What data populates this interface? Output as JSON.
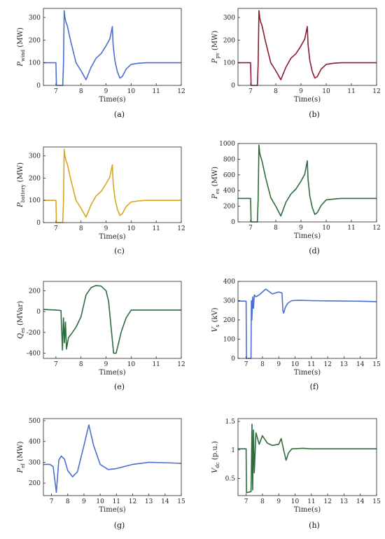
{
  "chart_data": [
    {
      "type": "line",
      "panel_label": "(a)",
      "xlabel": "Time(s)",
      "ylabel": {
        "base": "P",
        "sub": "wind",
        "unit": "(MW)"
      },
      "xlim": [
        6.5,
        12
      ],
      "ylim": [
        0,
        340
      ],
      "xticks": [
        7,
        8,
        9,
        10,
        11,
        12
      ],
      "yticks": [
        0,
        100,
        200,
        300
      ],
      "series": [
        {
          "color": "#4a6fd0",
          "x": [
            6.5,
            7.0,
            7.02,
            7.27,
            7.3,
            7.33,
            7.36,
            7.4,
            7.45,
            7.6,
            7.8,
            8.0,
            8.2,
            8.4,
            8.6,
            8.8,
            9.0,
            9.15,
            9.25,
            9.28,
            9.35,
            9.45,
            9.55,
            9.65,
            9.8,
            10.0,
            10.3,
            10.6,
            11.0,
            12.0
          ],
          "y": [
            100,
            100,
            0,
            0,
            95,
            330,
            300,
            280,
            265,
            190,
            100,
            65,
            25,
            80,
            120,
            140,
            175,
            205,
            260,
            180,
            110,
            60,
            32,
            40,
            72,
            93,
            98,
            100,
            100,
            100
          ]
        }
      ]
    },
    {
      "type": "line",
      "panel_label": "(b)",
      "xlabel": "Time(s)",
      "ylabel": {
        "base": "P",
        "sub": "pv",
        "unit": "(MW)"
      },
      "xlim": [
        6.5,
        12
      ],
      "ylim": [
        0,
        340
      ],
      "xticks": [
        7,
        8,
        9,
        10,
        11,
        12
      ],
      "yticks": [
        0,
        100,
        200,
        300
      ],
      "series": [
        {
          "color": "#8b1a2e",
          "x": [
            6.5,
            7.0,
            7.02,
            7.27,
            7.3,
            7.33,
            7.36,
            7.4,
            7.45,
            7.6,
            7.8,
            8.0,
            8.2,
            8.4,
            8.6,
            8.8,
            9.0,
            9.15,
            9.25,
            9.28,
            9.35,
            9.45,
            9.55,
            9.65,
            9.8,
            10.0,
            10.3,
            10.6,
            11.0,
            12.0
          ],
          "y": [
            100,
            100,
            0,
            0,
            95,
            330,
            300,
            280,
            265,
            190,
            100,
            65,
            25,
            80,
            120,
            140,
            175,
            205,
            260,
            180,
            110,
            60,
            32,
            40,
            72,
            93,
            98,
            100,
            100,
            100
          ]
        }
      ]
    },
    {
      "type": "line",
      "panel_label": "(c)",
      "xlabel": "Time(s)",
      "ylabel": {
        "base": "P",
        "sub": "battery",
        "unit": "(MW)"
      },
      "xlim": [
        6.5,
        12
      ],
      "ylim": [
        0,
        340
      ],
      "xticks": [
        7,
        8,
        9,
        10,
        11,
        12
      ],
      "yticks": [
        0,
        100,
        200,
        300
      ],
      "series": [
        {
          "color": "#d9a521",
          "x": [
            6.5,
            7.0,
            7.02,
            7.27,
            7.3,
            7.33,
            7.36,
            7.4,
            7.45,
            7.6,
            7.8,
            8.0,
            8.2,
            8.4,
            8.6,
            8.8,
            9.0,
            9.15,
            9.25,
            9.28,
            9.35,
            9.45,
            9.55,
            9.65,
            9.8,
            10.0,
            10.3,
            10.6,
            11.0,
            12.0
          ],
          "y": [
            100,
            100,
            0,
            0,
            95,
            330,
            300,
            280,
            265,
            190,
            100,
            65,
            25,
            80,
            120,
            140,
            175,
            205,
            260,
            180,
            110,
            60,
            32,
            40,
            72,
            93,
            98,
            100,
            100,
            100
          ]
        }
      ]
    },
    {
      "type": "line",
      "panel_label": "(d)",
      "xlabel": "Time(s)",
      "ylabel": {
        "base": "P",
        "sub": "es",
        "unit": "(MW)"
      },
      "xlim": [
        6.5,
        12
      ],
      "ylim": [
        0,
        1000
      ],
      "xticks": [
        7,
        8,
        9,
        10,
        11,
        12
      ],
      "yticks": [
        0,
        200,
        400,
        600,
        800,
        1000
      ],
      "series": [
        {
          "color": "#2e6b3e",
          "x": [
            6.5,
            7.0,
            7.02,
            7.27,
            7.3,
            7.33,
            7.36,
            7.4,
            7.45,
            7.6,
            7.8,
            8.0,
            8.2,
            8.4,
            8.6,
            8.8,
            9.0,
            9.15,
            9.25,
            9.28,
            9.35,
            9.45,
            9.55,
            9.65,
            9.8,
            10.0,
            10.3,
            10.6,
            11.0,
            12.0
          ],
          "y": [
            300,
            300,
            0,
            0,
            290,
            980,
            880,
            830,
            780,
            560,
            310,
            200,
            75,
            250,
            355,
            420,
            520,
            610,
            780,
            540,
            330,
            180,
            95,
            120,
            210,
            280,
            292,
            300,
            300,
            300
          ]
        }
      ]
    },
    {
      "type": "line",
      "panel_label": "(e)",
      "xlabel": "Time(s)",
      "ylabel": {
        "base": "Q",
        "sub": "es",
        "unit": "(MVar)"
      },
      "xlim": [
        6.5,
        12
      ],
      "ylim": [
        -450,
        290
      ],
      "xticks": [
        7,
        8,
        9,
        10,
        11,
        12
      ],
      "yticks": [
        -400,
        -200,
        0,
        200
      ],
      "series": [
        {
          "color": "#2e6b3e",
          "x": [
            6.5,
            7.0,
            7.2,
            7.26,
            7.3,
            7.34,
            7.38,
            7.42,
            7.5,
            7.6,
            7.8,
            8.0,
            8.2,
            8.4,
            8.6,
            8.8,
            9.0,
            9.1,
            9.2,
            9.3,
            9.4,
            9.5,
            9.6,
            9.8,
            10.0,
            10.5,
            11.0,
            12.0
          ],
          "y": [
            20,
            15,
            10,
            -370,
            -60,
            -300,
            -100,
            -360,
            -250,
            -220,
            -150,
            -50,
            160,
            230,
            250,
            245,
            200,
            100,
            -150,
            -400,
            -400,
            -300,
            -200,
            -60,
            15,
            15,
            15,
            15
          ]
        }
      ]
    },
    {
      "type": "line",
      "panel_label": "(f)",
      "xlabel": "Time(s)",
      "ylabel": {
        "base": "V",
        "sub": "s",
        "unit": "(kV)"
      },
      "xlim": [
        6.5,
        15
      ],
      "ylim": [
        0,
        400
      ],
      "xticks": [
        7,
        8,
        9,
        10,
        11,
        12,
        13,
        14,
        15
      ],
      "yticks": [
        0,
        100,
        200,
        300,
        400
      ],
      "series": [
        {
          "color": "#4a6fd0",
          "x": [
            6.5,
            7.0,
            7.02,
            7.3,
            7.32,
            7.35,
            7.4,
            7.45,
            7.5,
            7.6,
            7.8,
            8.0,
            8.2,
            8.6,
            9.0,
            9.2,
            9.25,
            9.3,
            9.4,
            9.5,
            9.6,
            9.8,
            10.2,
            11.0,
            12.0,
            13.0,
            14.0,
            15.0
          ],
          "y": [
            298,
            297,
            0,
            0,
            300,
            200,
            320,
            260,
            330,
            320,
            330,
            345,
            360,
            335,
            345,
            340,
            250,
            235,
            265,
            280,
            290,
            300,
            302,
            300,
            299,
            298,
            297,
            295
          ]
        }
      ]
    },
    {
      "type": "line",
      "panel_label": "(g)",
      "xlabel": "Time(s)",
      "ylabel": {
        "base": "P",
        "sub": "ef",
        "unit": "(MW)"
      },
      "xlim": [
        6.5,
        15
      ],
      "ylim": [
        140,
        510
      ],
      "xticks": [
        7,
        8,
        9,
        10,
        11,
        12,
        13,
        14,
        15
      ],
      "yticks": [
        200,
        300,
        400,
        500
      ],
      "series": [
        {
          "color": "#4a6fd0",
          "x": [
            6.5,
            6.9,
            7.1,
            7.3,
            7.45,
            7.6,
            7.8,
            8.0,
            8.3,
            8.6,
            9.0,
            9.3,
            9.6,
            10.0,
            10.5,
            11.0,
            12.0,
            13.0,
            14.0,
            15.0
          ],
          "y": [
            290,
            290,
            280,
            155,
            310,
            330,
            315,
            260,
            230,
            255,
            380,
            480,
            380,
            290,
            265,
            270,
            290,
            300,
            298,
            295
          ]
        }
      ]
    },
    {
      "type": "line",
      "panel_label": "(h)",
      "xlabel": "Time(s)",
      "ylabel": {
        "base": "V",
        "sub": "dc",
        "unit": "(p.u.)"
      },
      "xlim": [
        6.5,
        15
      ],
      "ylim": [
        0.2,
        1.55
      ],
      "xticks": [
        7,
        8,
        9,
        10,
        11,
        12,
        13,
        14,
        15
      ],
      "yticks": [
        0.5,
        1,
        1.5
      ],
      "series": [
        {
          "color": "#2e6b3e",
          "x": [
            6.5,
            7.0,
            7.02,
            7.3,
            7.32,
            7.36,
            7.4,
            7.45,
            7.5,
            7.6,
            7.8,
            8.0,
            8.3,
            8.6,
            9.0,
            9.15,
            9.3,
            9.45,
            9.6,
            9.8,
            10.5,
            11.0,
            12.0,
            13.0,
            14.0,
            15.0
          ],
          "y": [
            1.02,
            1.02,
            0.25,
            0.27,
            0.6,
            1.45,
            0.3,
            1.35,
            0.6,
            1.3,
            1.1,
            1.25,
            1.12,
            1.08,
            1.1,
            1.2,
            1.0,
            0.82,
            0.95,
            1.02,
            1.03,
            1.02,
            1.02,
            1.02,
            1.02,
            1.02
          ]
        }
      ]
    }
  ]
}
